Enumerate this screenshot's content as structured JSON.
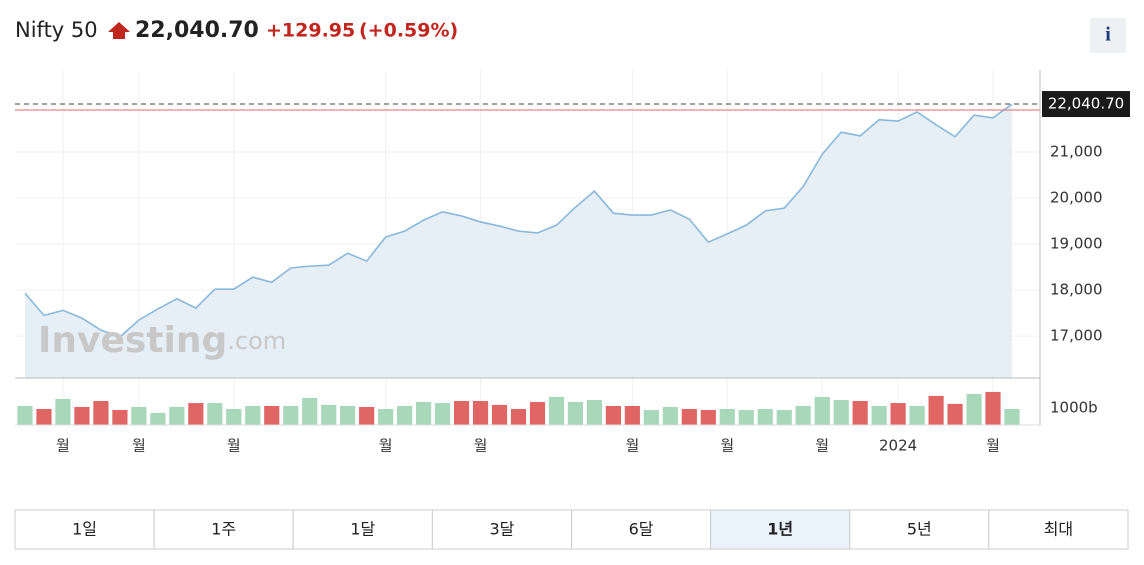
{
  "header": {
    "name": "Nifty 50",
    "price": "22,040.70",
    "change": "+129.95",
    "change_pct": "(+0.59%)",
    "info": "i"
  },
  "watermark": [
    "Investing",
    ".com"
  ],
  "chart_data": [
    {
      "type": "line",
      "color": "#8ab8db",
      "fill": "#e6eef6",
      "prev_close": 21910.75,
      "prev_close_color": "#e06a6a",
      "categories": [
        null,
        null,
        "월",
        null,
        null,
        null,
        "월",
        null,
        null,
        null,
        null,
        "월",
        null,
        null,
        null,
        null,
        null,
        null,
        null,
        "월",
        null,
        null,
        null,
        null,
        "월",
        null,
        null,
        null,
        null,
        null,
        null,
        null,
        "월",
        null,
        null,
        null,
        null,
        "월",
        null,
        null,
        null,
        null,
        "월",
        null,
        null,
        null,
        "2024",
        null,
        null,
        null,
        null,
        "월",
        null
      ],
      "values": [
        17930,
        17450,
        17560,
        17390,
        17130,
        16980,
        17350,
        17590,
        17810,
        17610,
        18020,
        18020,
        18280,
        18170,
        18480,
        18520,
        18540,
        18800,
        18630,
        19150,
        19280,
        19520,
        19700,
        19610,
        19480,
        19390,
        19280,
        19240,
        19410,
        19800,
        20150,
        19670,
        19630,
        19630,
        19740,
        19540,
        19040,
        19220,
        19410,
        19720,
        19780,
        20250,
        20950,
        21430,
        21350,
        21700,
        21670,
        21870,
        21590,
        21330,
        21800,
        21740,
        22040.7
      ],
      "ylim": [
        16090,
        22780
      ],
      "yticks": [
        {
          "value": 17000,
          "label": "17,000"
        },
        {
          "value": 18000,
          "label": "18,000"
        },
        {
          "value": 19000,
          "label": "19,000"
        },
        {
          "value": 20000,
          "label": "20,000"
        },
        {
          "value": 21000,
          "label": "21,000"
        }
      ],
      "grid": true
    },
    {
      "type": "bar",
      "values": [
        1120,
        940,
        1530,
        1060,
        1410,
        880,
        1060,
        710,
        1060,
        1290,
        1290,
        940,
        1120,
        1120,
        1120,
        1590,
        1180,
        1120,
        1060,
        940,
        1120,
        1350,
        1290,
        1410,
        1410,
        1180,
        940,
        1350,
        1650,
        1350,
        1470,
        1120,
        1120,
        880,
        1060,
        940,
        880,
        940,
        880,
        940,
        880,
        1120,
        1650,
        1470,
        1410,
        1120,
        1290,
        1120,
        1710,
        1240,
        1820,
        1940,
        940
      ],
      "colors": [
        "#a8d8b9",
        "#e06666",
        "#a8d8b9",
        "#e06666",
        "#e06666",
        "#e06666",
        "#a8d8b9",
        "#a8d8b9",
        "#a8d8b9",
        "#e06666",
        "#a8d8b9",
        "#a8d8b9",
        "#a8d8b9",
        "#e06666",
        "#a8d8b9",
        "#a8d8b9",
        "#a8d8b9",
        "#a8d8b9",
        "#e06666",
        "#a8d8b9",
        "#a8d8b9",
        "#a8d8b9",
        "#a8d8b9",
        "#e06666",
        "#e06666",
        "#e06666",
        "#e06666",
        "#e06666",
        "#a8d8b9",
        "#a8d8b9",
        "#a8d8b9",
        "#e06666",
        "#e06666",
        "#a8d8b9",
        "#a8d8b9",
        "#e06666",
        "#e06666",
        "#a8d8b9",
        "#a8d8b9",
        "#a8d8b9",
        "#a8d8b9",
        "#a8d8b9",
        "#a8d8b9",
        "#a8d8b9",
        "#e06666",
        "#a8d8b9",
        "#e06666",
        "#a8d8b9",
        "#e06666",
        "#e06666",
        "#a8d8b9",
        "#e06666",
        "#a8d8b9"
      ],
      "ylim": [
        0,
        2760
      ],
      "yticks": [
        {
          "value": 1000,
          "label": "1000b"
        }
      ]
    }
  ],
  "range_buttons": [
    "1일",
    "1주",
    "1달",
    "3달",
    "6달",
    "1년",
    "5년",
    "최대"
  ],
  "selected_button": 5
}
